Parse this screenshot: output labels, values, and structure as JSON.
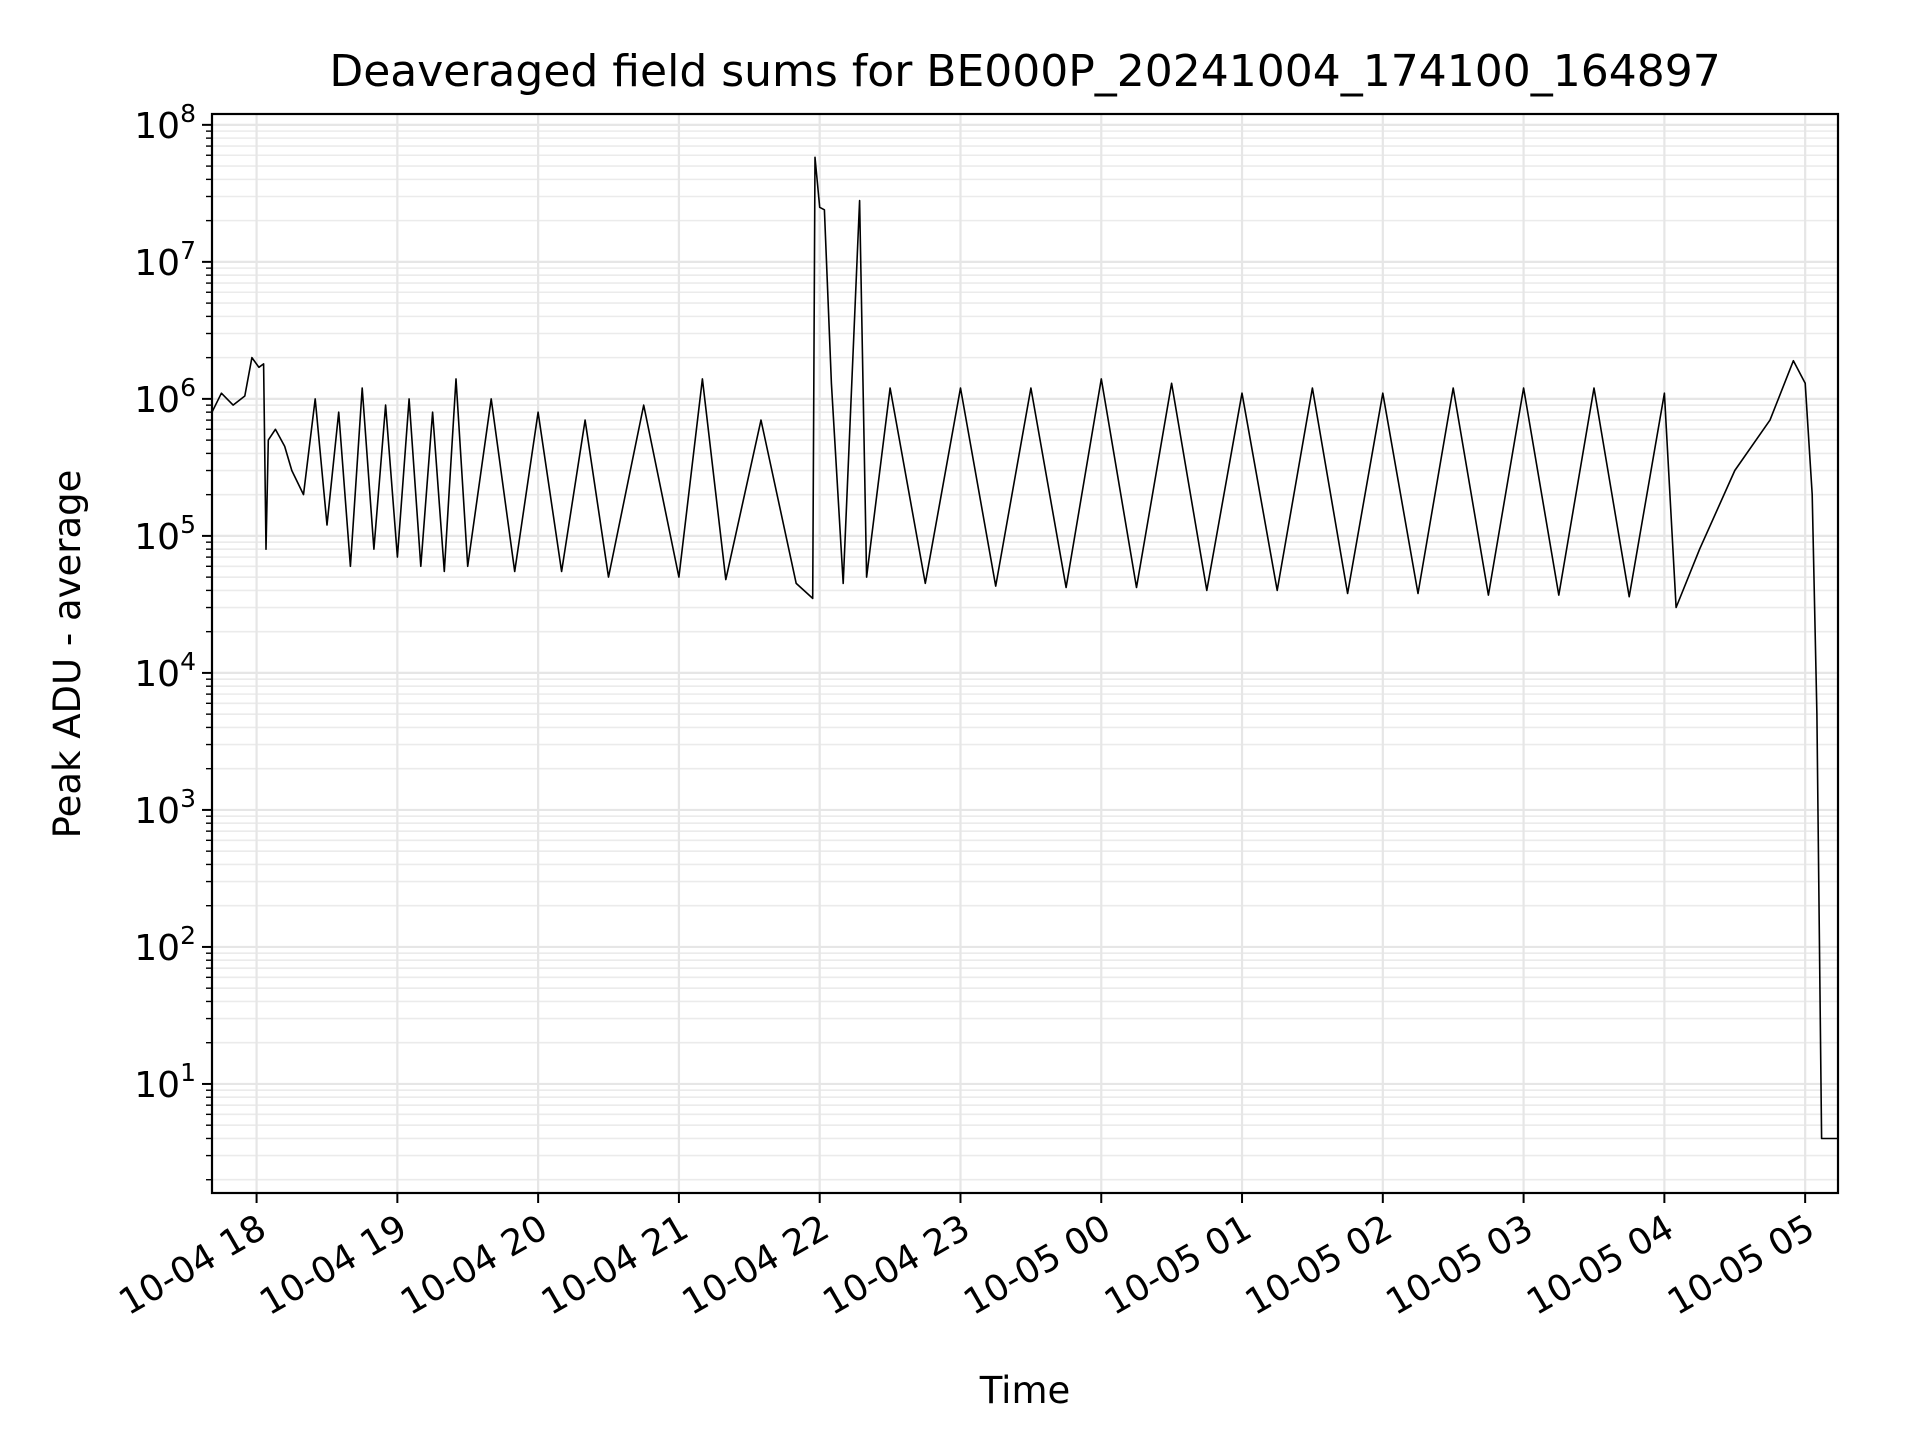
{
  "chart_data": {
    "type": "line",
    "title": "Deaveraged field sums for BE000P_20241004_174100_164897",
    "xlabel": "Time",
    "ylabel": "Peak ADU - average",
    "yscale": "log",
    "ylim": [
      1.6,
      120000000
    ],
    "xlim": [
      "2024-10-04 17:41",
      "2024-10-05 05:14"
    ],
    "grid": true,
    "series": [
      {
        "line_color": "#000000",
        "points": [
          [
            "2024-10-04 17:41",
            800000
          ],
          [
            "2024-10-04 17:45",
            1100000
          ],
          [
            "2024-10-04 17:50",
            900000
          ],
          [
            "2024-10-04 17:55",
            1050000
          ],
          [
            "2024-10-04 17:58",
            2000000
          ],
          [
            "2024-10-04 18:01",
            1700000
          ],
          [
            "2024-10-04 18:03",
            1800000
          ],
          [
            "2024-10-04 18:04",
            80000
          ],
          [
            "2024-10-04 18:05",
            500000
          ],
          [
            "2024-10-04 18:08",
            600000
          ],
          [
            "2024-10-04 18:12",
            450000
          ],
          [
            "2024-10-04 18:15",
            300000
          ],
          [
            "2024-10-04 18:20",
            200000
          ],
          [
            "2024-10-04 18:25",
            1000000
          ],
          [
            "2024-10-04 18:30",
            120000
          ],
          [
            "2024-10-04 18:35",
            800000
          ],
          [
            "2024-10-04 18:40",
            60000
          ],
          [
            "2024-10-04 18:45",
            1200000
          ],
          [
            "2024-10-04 18:50",
            80000
          ],
          [
            "2024-10-04 18:55",
            900000
          ],
          [
            "2024-10-04 19:00",
            70000
          ],
          [
            "2024-10-04 19:05",
            1000000
          ],
          [
            "2024-10-04 19:10",
            60000
          ],
          [
            "2024-10-04 19:15",
            800000
          ],
          [
            "2024-10-04 19:20",
            55000
          ],
          [
            "2024-10-04 19:25",
            1400000
          ],
          [
            "2024-10-04 19:30",
            60000
          ],
          [
            "2024-10-04 19:40",
            1000000
          ],
          [
            "2024-10-04 19:50",
            55000
          ],
          [
            "2024-10-04 20:00",
            800000
          ],
          [
            "2024-10-04 20:10",
            55000
          ],
          [
            "2024-10-04 20:20",
            700000
          ],
          [
            "2024-10-04 20:30",
            50000
          ],
          [
            "2024-10-04 20:45",
            900000
          ],
          [
            "2024-10-04 21:00",
            50000
          ],
          [
            "2024-10-04 21:10",
            1400000
          ],
          [
            "2024-10-04 21:20",
            48000
          ],
          [
            "2024-10-04 21:35",
            700000
          ],
          [
            "2024-10-04 21:50",
            45000
          ],
          [
            "2024-10-04 21:57",
            35000
          ],
          [
            "2024-10-04 21:58",
            58000000
          ],
          [
            "2024-10-04 22:00",
            25000000
          ],
          [
            "2024-10-04 22:02",
            24000000
          ],
          [
            "2024-10-04 22:05",
            1300000
          ],
          [
            "2024-10-04 22:10",
            45000
          ],
          [
            "2024-10-04 22:17",
            28000000
          ],
          [
            "2024-10-04 22:20",
            50000
          ],
          [
            "2024-10-04 22:30",
            1200000
          ],
          [
            "2024-10-04 22:45",
            45000
          ],
          [
            "2024-10-04 23:00",
            1200000
          ],
          [
            "2024-10-04 23:15",
            43000
          ],
          [
            "2024-10-04 23:30",
            1200000
          ],
          [
            "2024-10-04 23:45",
            42000
          ],
          [
            "2024-10-05 00:00",
            1400000
          ],
          [
            "2024-10-05 00:15",
            42000
          ],
          [
            "2024-10-05 00:30",
            1300000
          ],
          [
            "2024-10-05 00:45",
            40000
          ],
          [
            "2024-10-05 01:00",
            1100000
          ],
          [
            "2024-10-05 01:15",
            40000
          ],
          [
            "2024-10-05 01:30",
            1200000
          ],
          [
            "2024-10-05 01:45",
            38000
          ],
          [
            "2024-10-05 02:00",
            1100000
          ],
          [
            "2024-10-05 02:15",
            38000
          ],
          [
            "2024-10-05 02:30",
            1200000
          ],
          [
            "2024-10-05 02:45",
            37000
          ],
          [
            "2024-10-05 03:00",
            1200000
          ],
          [
            "2024-10-05 03:15",
            37000
          ],
          [
            "2024-10-05 03:30",
            1200000
          ],
          [
            "2024-10-05 03:45",
            36000
          ],
          [
            "2024-10-05 04:00",
            1100000
          ],
          [
            "2024-10-05 04:05",
            30000
          ],
          [
            "2024-10-05 04:15",
            80000
          ],
          [
            "2024-10-05 04:30",
            300000
          ],
          [
            "2024-10-05 04:45",
            700000
          ],
          [
            "2024-10-05 04:55",
            1900000
          ],
          [
            "2024-10-05 05:00",
            1300000
          ],
          [
            "2024-10-05 05:03",
            200000
          ],
          [
            "2024-10-05 05:05",
            5000
          ],
          [
            "2024-10-05 05:07",
            4
          ],
          [
            "2024-10-05 05:14",
            4
          ]
        ]
      }
    ]
  }
}
